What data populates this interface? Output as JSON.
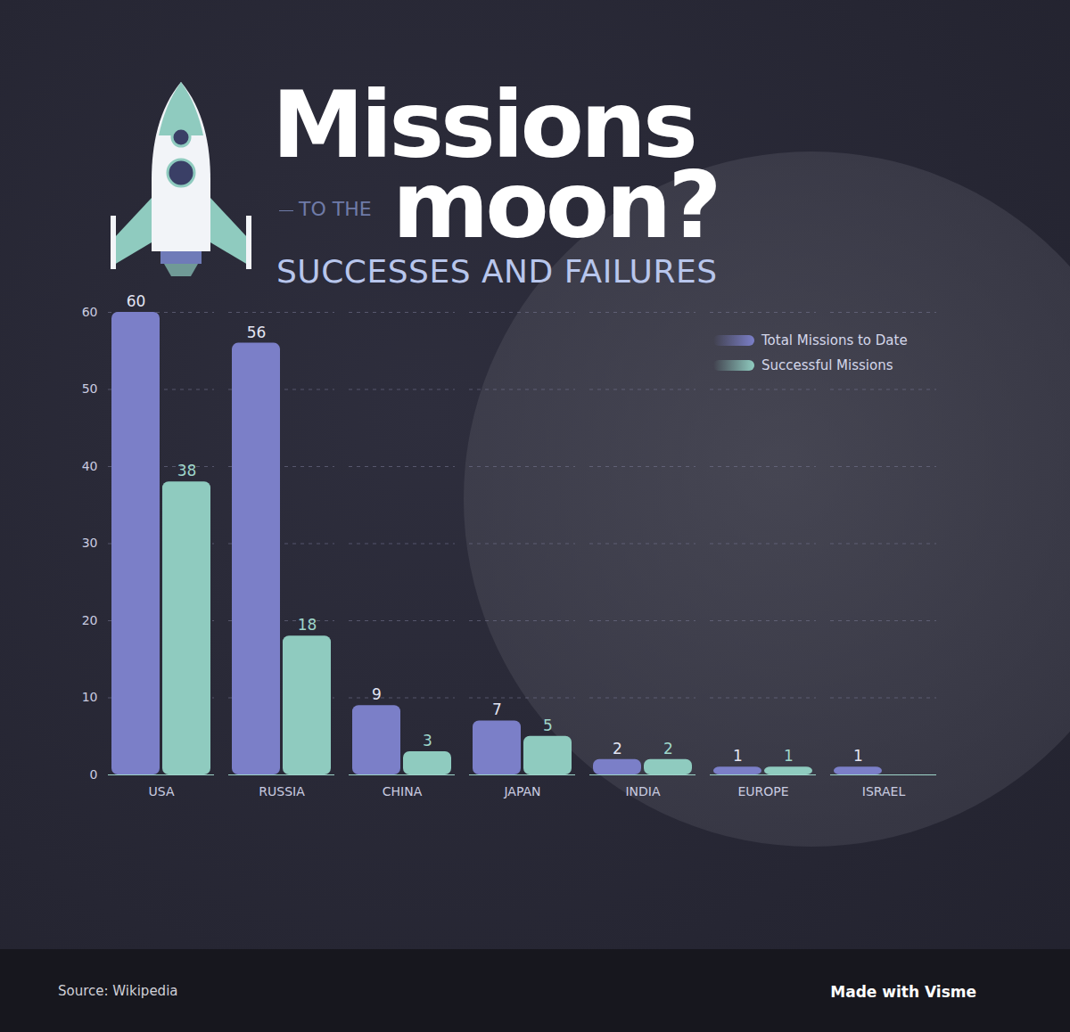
{
  "chart_data": {
    "type": "bar",
    "title": "Missions TO THE moon?",
    "subtitle": "SUCCESSES AND FAILURES",
    "caption": "Source: Wikipedia",
    "annotations": [
      "Made with Visme"
    ],
    "categories": [
      "USA",
      "RUSSIA",
      "CHINA",
      "JAPAN",
      "INDIA",
      "EUROPE",
      "ISRAEL"
    ],
    "series": [
      {
        "name": "Total Missions to Date",
        "color": "#7b7fc8",
        "values": [
          60,
          56,
          9,
          7,
          2,
          1,
          1
        ]
      },
      {
        "name": "Successful Missions",
        "color": "#8fcbbf",
        "values": [
          38,
          18,
          3,
          5,
          2,
          1,
          null
        ]
      }
    ],
    "ylim": [
      0,
      60
    ],
    "yticks": [
      0,
      10,
      20,
      30,
      40,
      50,
      60
    ],
    "grid": true,
    "legend": "top-right",
    "data_labels": true
  }
}
